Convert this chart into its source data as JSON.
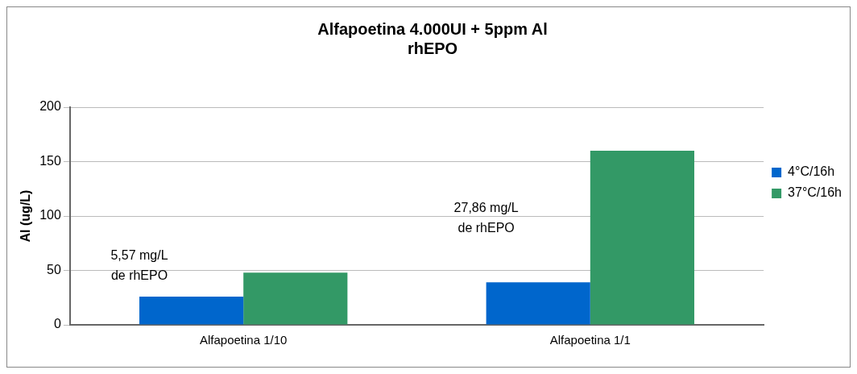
{
  "chart_data": {
    "type": "bar",
    "title": "Alfapoetina 4.000UI + 5ppm Al\nrhEPO",
    "ylabel": "Al (ug/L)",
    "categories": [
      "Alfapoetina 1/10",
      "Alfapoetina 1/1"
    ],
    "series": [
      {
        "name": "4°C/16h",
        "color": "#0066cc",
        "values": [
          26,
          39
        ]
      },
      {
        "name": "37°C/16h",
        "color": "#339966",
        "values": [
          48,
          160
        ]
      }
    ],
    "ylim": [
      0,
      200
    ],
    "yticks": [
      0,
      50,
      100,
      150,
      200
    ],
    "grid": "y",
    "legend": "right",
    "annotations": [
      "5,57 mg/L\nde rhEPO",
      "27,86 mg/L\nde rhEPO"
    ]
  }
}
